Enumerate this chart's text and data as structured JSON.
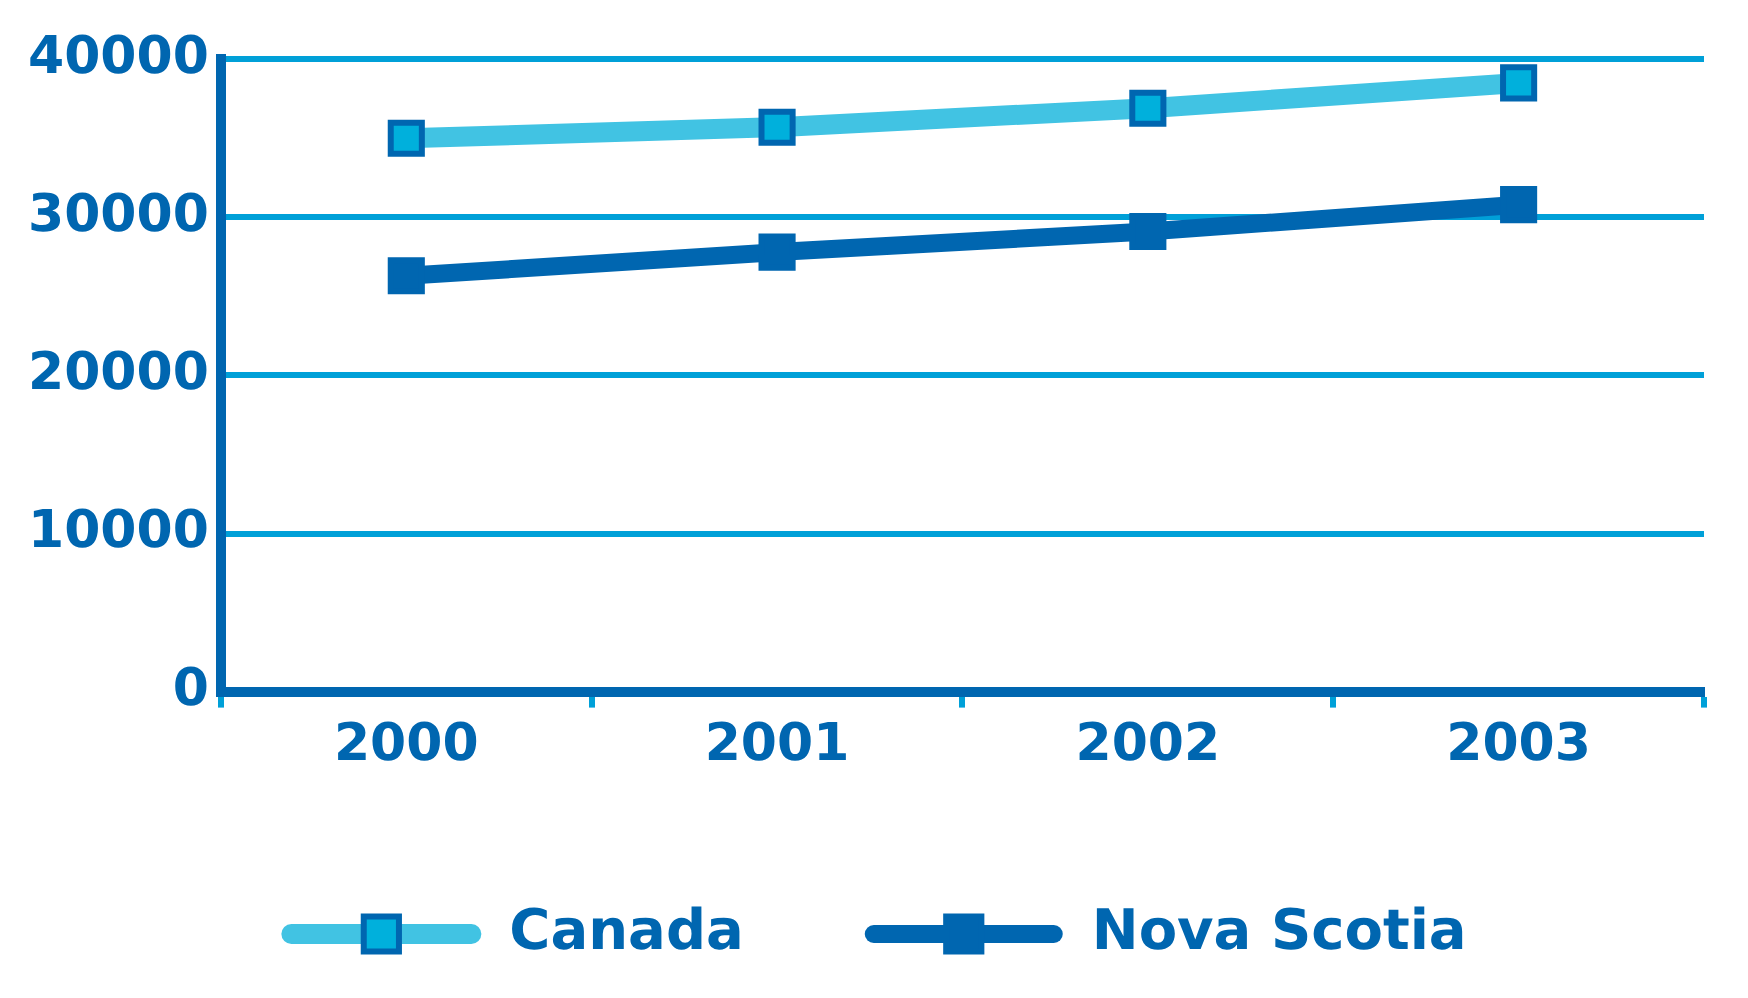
{
  "chart_data": {
    "type": "line",
    "categories": [
      "2000",
      "2001",
      "2002",
      "2003"
    ],
    "series": [
      {
        "name": "Canada",
        "color": "#41c3e3",
        "values": [
          35000,
          35700,
          36900,
          38500
        ]
      },
      {
        "name": "Nova Scotia",
        "color": "#0066b0",
        "values": [
          26300,
          27800,
          29100,
          30800
        ]
      }
    ],
    "ylim": [
      0,
      40000
    ],
    "yticks": [
      0,
      10000,
      20000,
      30000,
      40000
    ],
    "grid": "y",
    "legend": "bottom",
    "marker": "square",
    "line_style": "solid"
  }
}
